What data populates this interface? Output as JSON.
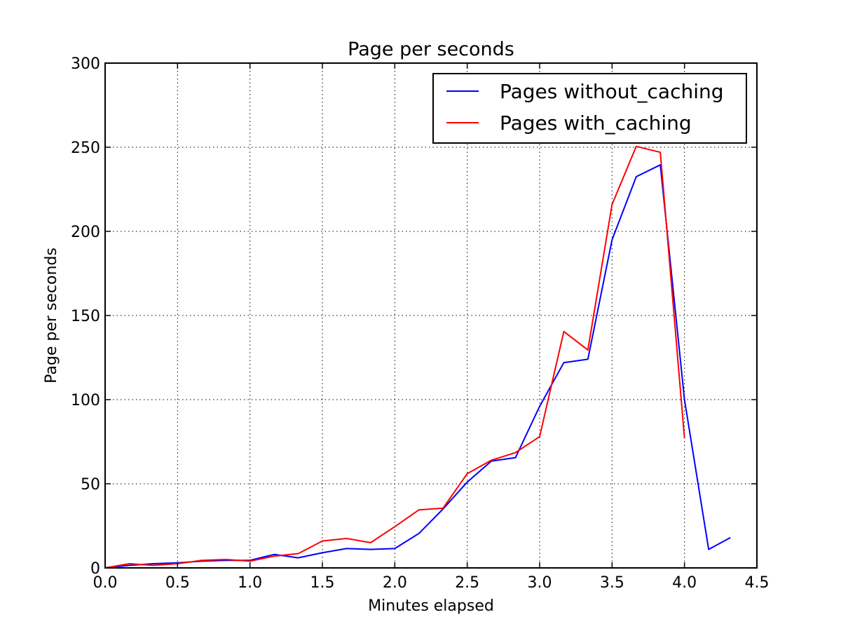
{
  "chart_data": {
    "type": "line",
    "title": "Page per seconds",
    "xlabel": "Minutes elapsed",
    "ylabel": "Page per seconds",
    "xlim": [
      0.0,
      4.5
    ],
    "ylim": [
      0,
      300
    ],
    "xticks": [
      0.0,
      0.5,
      1.0,
      1.5,
      2.0,
      2.5,
      3.0,
      3.5,
      4.0,
      4.5
    ],
    "xtick_labels": [
      "0.0",
      "0.5",
      "1.0",
      "1.5",
      "2.0",
      "2.5",
      "3.0",
      "3.5",
      "4.0",
      "4.5"
    ],
    "yticks": [
      0,
      50,
      100,
      150,
      200,
      250,
      300
    ],
    "ytick_labels": [
      "0",
      "50",
      "100",
      "150",
      "200",
      "250",
      "300"
    ],
    "grid": true,
    "legend_position": "top-right",
    "series": [
      {
        "name": "Pages without_caching",
        "color": "#0000ff",
        "x": [
          0.0,
          0.167,
          0.333,
          0.5,
          0.667,
          0.833,
          1.0,
          1.167,
          1.333,
          1.5,
          1.667,
          1.833,
          2.0,
          2.167,
          2.333,
          2.5,
          2.667,
          2.833,
          3.0,
          3.167,
          3.333,
          3.5,
          3.667,
          3.833,
          4.0,
          4.167,
          4.317
        ],
        "y": [
          0,
          1.5,
          2.5,
          3,
          4,
          4.5,
          4.5,
          8,
          6,
          9,
          11.5,
          11,
          11.5,
          20.5,
          35,
          51,
          63.5,
          65.5,
          96,
          122,
          124,
          195,
          232.5,
          239.5,
          100,
          11,
          18
        ]
      },
      {
        "name": "Pages with_caching",
        "color": "#ff0000",
        "x": [
          0.0,
          0.167,
          0.333,
          0.5,
          0.667,
          0.833,
          1.0,
          1.167,
          1.333,
          1.5,
          1.667,
          1.833,
          2.0,
          2.167,
          2.333,
          2.5,
          2.667,
          2.833,
          3.0,
          3.167,
          3.333,
          3.5,
          3.667,
          3.833,
          4.0
        ],
        "y": [
          0,
          2.5,
          1.5,
          2.5,
          4.5,
          5,
          4,
          7,
          8.5,
          16,
          17.5,
          15,
          24.5,
          34.5,
          35.5,
          56,
          64,
          68.5,
          78,
          140.5,
          129.5,
          216,
          250.5,
          247,
          77
        ]
      }
    ]
  }
}
